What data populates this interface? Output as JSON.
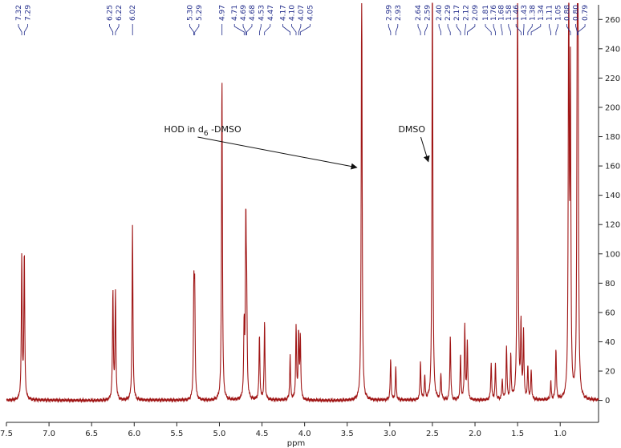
{
  "chart_data": {
    "type": "line",
    "title": "",
    "xlabel": "ppm",
    "ylabel": "",
    "xlim": [
      7.5,
      0.55
    ],
    "ylim": [
      -15,
      270
    ],
    "x_ticks": [
      "7.5",
      "7.0",
      "6.5",
      "6.0",
      "5.5",
      "5.0",
      "4.5",
      "4.0",
      "3.5",
      "3.0",
      "2.5",
      "2.0",
      "1.5",
      "1.0"
    ],
    "y_ticks": [
      "0",
      "20",
      "40",
      "60",
      "80",
      "100",
      "120",
      "140",
      "160",
      "180",
      "200",
      "220",
      "240",
      "260"
    ],
    "series_color": "#a01616",
    "peak_label_color": "#1f2a8a",
    "peaks": [
      {
        "x": 7.32,
        "y": 97
      },
      {
        "x": 7.29,
        "y": 100
      },
      {
        "x": 6.25,
        "y": 74
      },
      {
        "x": 6.22,
        "y": 73
      },
      {
        "x": 6.02,
        "y": 119
      },
      {
        "x": 5.3,
        "y": 70
      },
      {
        "x": 5.29,
        "y": 67
      },
      {
        "x": 4.97,
        "y": 223
      },
      {
        "x": 4.71,
        "y": 48
      },
      {
        "x": 4.69,
        "y": 117
      },
      {
        "x": 4.68,
        "y": 58
      },
      {
        "x": 4.53,
        "y": 45
      },
      {
        "x": 4.47,
        "y": 53
      },
      {
        "x": 4.17,
        "y": 30
      },
      {
        "x": 4.1,
        "y": 50
      },
      {
        "x": 4.07,
        "y": 45
      },
      {
        "x": 4.05,
        "y": 42
      },
      {
        "x": 3.33,
        "y": 300
      },
      {
        "x": 2.99,
        "y": 28
      },
      {
        "x": 2.93,
        "y": 22
      },
      {
        "x": 2.64,
        "y": 26
      },
      {
        "x": 2.59,
        "y": 16
      },
      {
        "x": 2.5,
        "y": 300
      },
      {
        "x": 2.4,
        "y": 18
      },
      {
        "x": 2.29,
        "y": 44
      },
      {
        "x": 2.17,
        "y": 30
      },
      {
        "x": 2.12,
        "y": 52
      },
      {
        "x": 2.09,
        "y": 40
      },
      {
        "x": 1.81,
        "y": 26
      },
      {
        "x": 1.76,
        "y": 24
      },
      {
        "x": 1.68,
        "y": 14
      },
      {
        "x": 1.63,
        "y": 36
      },
      {
        "x": 1.58,
        "y": 30
      },
      {
        "x": 1.5,
        "y": 300
      },
      {
        "x": 1.46,
        "y": 50
      },
      {
        "x": 1.43,
        "y": 45
      },
      {
        "x": 1.38,
        "y": 22
      },
      {
        "x": 1.34,
        "y": 20
      },
      {
        "x": 1.11,
        "y": 12
      },
      {
        "x": 1.05,
        "y": 35
      },
      {
        "x": 0.9,
        "y": 300
      },
      {
        "x": 0.88,
        "y": 215
      },
      {
        "x": 0.8,
        "y": 218
      },
      {
        "x": 0.79,
        "y": 210
      }
    ],
    "peak_labels": [
      {
        "text": "7.32",
        "x": 7.32
      },
      {
        "text": "7.29",
        "x": 7.29
      },
      {
        "text": "6.25",
        "x": 6.25
      },
      {
        "text": "6.22",
        "x": 6.22
      },
      {
        "text": "6.02",
        "x": 6.02
      },
      {
        "text": "5.30",
        "x": 5.3
      },
      {
        "text": "5.29",
        "x": 5.29
      },
      {
        "text": "4.97",
        "x": 4.97
      },
      {
        "text": "4.71",
        "x": 4.71
      },
      {
        "text": "4.69",
        "x": 4.69
      },
      {
        "text": "4.68",
        "x": 4.68
      },
      {
        "text": "4.53",
        "x": 4.53
      },
      {
        "text": "4.47",
        "x": 4.47
      },
      {
        "text": "4.17",
        "x": 4.17
      },
      {
        "text": "4.10",
        "x": 4.1
      },
      {
        "text": "4.07",
        "x": 4.07
      },
      {
        "text": "4.05",
        "x": 4.05
      },
      {
        "text": "2.99",
        "x": 2.99
      },
      {
        "text": "2.93",
        "x": 2.93
      },
      {
        "text": "2.64",
        "x": 2.64
      },
      {
        "text": "2.59",
        "x": 2.59
      },
      {
        "text": "2.40",
        "x": 2.4
      },
      {
        "text": "2.29",
        "x": 2.29
      },
      {
        "text": "2.17",
        "x": 2.17
      },
      {
        "text": "2.12",
        "x": 2.12
      },
      {
        "text": "2.09",
        "x": 2.09
      },
      {
        "text": "1.81",
        "x": 1.81
      },
      {
        "text": "1.76",
        "x": 1.76
      },
      {
        "text": "1.68",
        "x": 1.68
      },
      {
        "text": "1.58",
        "x": 1.58
      },
      {
        "text": "1.46",
        "x": 1.46
      },
      {
        "text": "1.43",
        "x": 1.43
      },
      {
        "text": "1.38",
        "x": 1.38
      },
      {
        "text": "1.34",
        "x": 1.34
      },
      {
        "text": "1.11",
        "x": 1.11
      },
      {
        "text": "1.05",
        "x": 1.05
      },
      {
        "text": "0.88",
        "x": 0.88
      },
      {
        "text": "0.80",
        "x": 0.8
      },
      {
        "text": "0.79",
        "x": 0.79
      }
    ],
    "annotations": [
      {
        "prefix": "HOD in d",
        "sub": "6",
        "suffix": " -DMSO",
        "text_x": 5.65,
        "text_y": 183,
        "arrow_to_x": 3.36,
        "arrow_to_y": 159
      },
      {
        "prefix": "DMSO",
        "sub": "",
        "suffix": "",
        "text_x": 2.9,
        "text_y": 183,
        "arrow_to_x": 2.52,
        "arrow_to_y": 163
      }
    ]
  }
}
